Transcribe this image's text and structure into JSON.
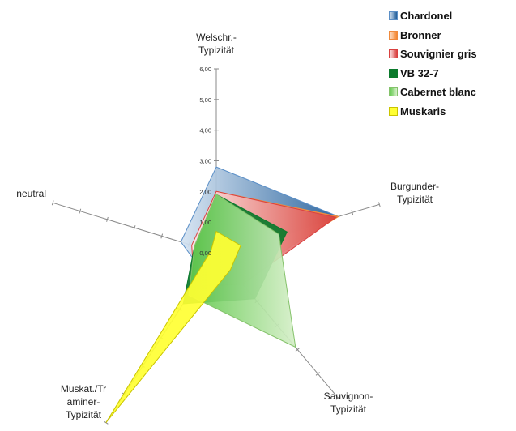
{
  "chart_data": {
    "type": "radar",
    "axes": [
      {
        "key": "welschr",
        "lines": [
          "Welschr.-",
          "Typizität"
        ]
      },
      {
        "key": "burgunder",
        "lines": [
          "Burgunder-",
          "Typizität"
        ]
      },
      {
        "key": "sauvignon",
        "lines": [
          "Sauvignon-",
          "Typizität"
        ]
      },
      {
        "key": "muskat",
        "lines": [
          "Muskat./Tr",
          "aminer-",
          "Typizität"
        ]
      },
      {
        "key": "neutral",
        "lines": [
          "neutral"
        ]
      }
    ],
    "rlim": [
      0,
      6
    ],
    "ticks": [
      "0,00",
      "1,00",
      "2,00",
      "3,00",
      "4,00",
      "5,00",
      "6,00"
    ],
    "series": [
      {
        "name": "Chardonel",
        "values": [
          2.8,
          4.5,
          0.2,
          0.7,
          1.3
        ],
        "colors": [
          "#d6e4f2",
          "#1f5c99"
        ],
        "edge": "#5b8fc7"
      },
      {
        "name": "Bronner",
        "values": [
          2.0,
          4.5,
          1.1,
          1.0,
          0.8
        ],
        "colors": [
          "#fde3cf",
          "#f4862f"
        ],
        "edge": "#f08a3c"
      },
      {
        "name": "Souvignier gris",
        "values": [
          2.0,
          4.4,
          1.3,
          1.2,
          0.9
        ],
        "colors": [
          "#fdeaea",
          "#d9403f"
        ],
        "edge": "#d9403f"
      },
      {
        "name": "VB 32-7",
        "values": [
          1.9,
          2.6,
          1.9,
          1.8,
          0.8
        ],
        "colors": [
          "#0b7a2c",
          "#0b7a2c"
        ],
        "edge": "#0b7a2c"
      },
      {
        "name": "Cabernet blanc",
        "values": [
          1.9,
          2.3,
          3.9,
          1.5,
          0.8
        ],
        "colors": [
          "#5fc84a",
          "#d6efc9"
        ],
        "edge": "#84c26a"
      },
      {
        "name": "Muskaris",
        "values": [
          0.7,
          0.9,
          0.7,
          6.0,
          0.2
        ],
        "colors": [
          "#ffff33",
          "#ffff33"
        ],
        "edge": "#c9c400"
      }
    ]
  }
}
